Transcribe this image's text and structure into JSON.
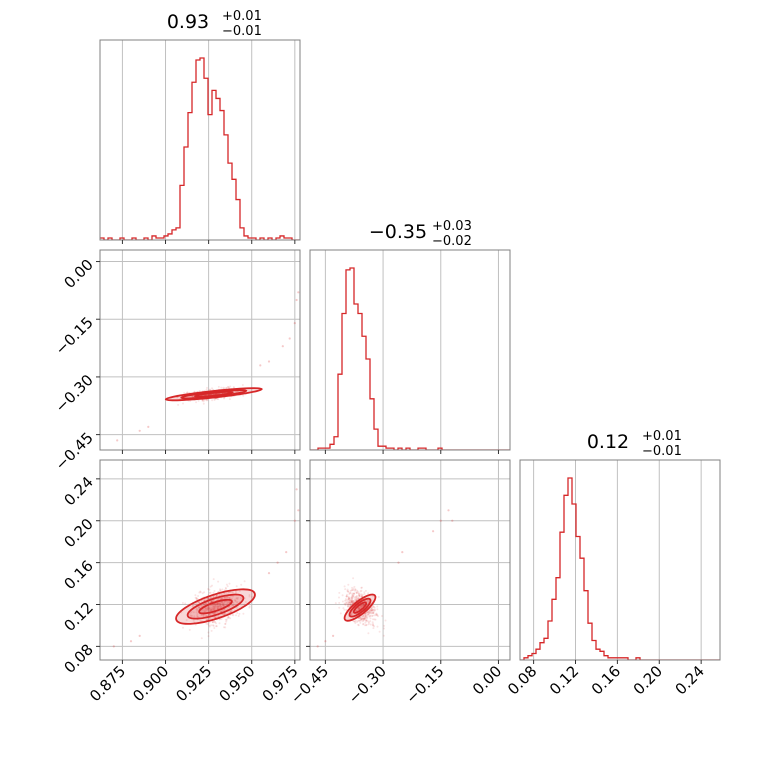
{
  "chart_data": {
    "type": "corner",
    "color": "#d62728",
    "grid": true,
    "parameters": [
      {
        "index": 0,
        "title_value": "0.93",
        "title_plus": "+0.01",
        "title_minus": "−0.01",
        "median": 0.93,
        "range": [
          0.862,
          0.978
        ],
        "ticks": [
          0.875,
          0.9,
          0.925,
          0.95,
          0.975
        ],
        "tick_labels": [
          "0.875",
          "0.900",
          "0.925",
          "0.950",
          "0.975"
        ],
        "hist": {
          "edges_start": 0.862,
          "bin_width": 0.00232,
          "counts": [
            1,
            0,
            1,
            0,
            0,
            1,
            0,
            0,
            1,
            0,
            0,
            1,
            0,
            2,
            1,
            1,
            2,
            3,
            5,
            6,
            27,
            46,
            63,
            78,
            89,
            90,
            80,
            62,
            74,
            70,
            64,
            52,
            38,
            30,
            20,
            6,
            2,
            1,
            1,
            0,
            1,
            0,
            1,
            0,
            1,
            2,
            1,
            1,
            0,
            0
          ]
        }
      },
      {
        "index": 1,
        "title_value": "−0.35",
        "title_plus": "+0.03",
        "title_minus": "−0.02",
        "median": -0.35,
        "range": [
          -0.49,
          0.03
        ],
        "ticks": [
          -0.45,
          -0.3,
          -0.15,
          0.0
        ],
        "tick_labels": [
          "−0.45",
          "−0.30",
          "−0.15",
          "0.00"
        ],
        "hist": {
          "edges_start": -0.49,
          "bin_width": 0.0104,
          "counts": [
            0,
            0,
            1,
            1,
            1,
            3,
            7,
            40,
            72,
            95,
            96,
            77,
            72,
            60,
            48,
            27,
            11,
            2,
            2,
            1,
            1,
            0,
            1,
            0,
            1,
            0,
            0,
            1,
            1,
            0,
            0,
            0,
            1,
            0,
            0,
            0,
            0,
            0,
            0,
            0,
            0,
            0,
            0,
            0,
            0,
            0,
            0,
            0,
            0,
            0
          ]
        }
      },
      {
        "index": 2,
        "title_value": "0.12",
        "title_plus": "+0.01",
        "title_minus": "−0.01",
        "median": 0.12,
        "range": [
          0.067,
          0.258
        ],
        "ticks": [
          0.08,
          0.12,
          0.16,
          0.2,
          0.24
        ],
        "tick_labels": [
          "0.08",
          "0.12",
          "0.16",
          "0.20",
          "0.24"
        ],
        "hist": {
          "edges_start": 0.067,
          "bin_width": 0.00382,
          "counts": [
            0,
            1,
            2,
            3,
            5,
            8,
            10,
            18,
            28,
            38,
            59,
            76,
            84,
            72,
            57,
            47,
            32,
            17,
            9,
            5,
            4,
            2,
            1,
            1,
            1,
            1,
            1,
            0,
            0,
            1,
            0,
            0,
            0,
            0,
            0,
            0,
            0,
            0,
            0,
            0,
            0,
            0,
            0,
            0,
            0,
            0,
            0,
            0,
            0,
            0
          ]
        }
      }
    ],
    "pairs": [
      {
        "x_param": 0,
        "y_param": 1,
        "center": [
          0.928,
          -0.345
        ],
        "direction": [
          1.0,
          0.48
        ],
        "scatter_spread": [
          0.014,
          0.006
        ],
        "contours": [
          {
            "level": 1,
            "half_length": 0.011,
            "half_width": 0.0035
          },
          {
            "level": 2,
            "half_length": 0.019,
            "half_width": 0.006
          },
          {
            "level": 3,
            "half_length": 0.028,
            "half_width": 0.0085
          }
        ],
        "tail_points": [
          [
            0.872,
            -0.465
          ],
          [
            0.885,
            -0.44
          ],
          [
            0.89,
            -0.43
          ],
          [
            0.955,
            -0.27
          ],
          [
            0.96,
            -0.26
          ],
          [
            0.968,
            -0.22
          ],
          [
            0.972,
            -0.2
          ],
          [
            0.975,
            -0.16
          ],
          [
            0.976,
            -0.1
          ],
          [
            0.977,
            -0.08
          ]
        ]
      },
      {
        "x_param": 0,
        "y_param": 2,
        "center": [
          0.929,
          0.118
        ],
        "direction": [
          1.0,
          0.55
        ],
        "scatter_spread": [
          0.013,
          0.008
        ],
        "contours": [
          {
            "level": 1,
            "half_length": 0.01,
            "half_width": 0.004
          },
          {
            "level": 2,
            "half_length": 0.017,
            "half_width": 0.0075
          },
          {
            "level": 3,
            "half_length": 0.024,
            "half_width": 0.011
          }
        ],
        "tail_points": [
          [
            0.87,
            0.08
          ],
          [
            0.88,
            0.085
          ],
          [
            0.885,
            0.09
          ],
          [
            0.96,
            0.15
          ],
          [
            0.965,
            0.16
          ],
          [
            0.97,
            0.17
          ],
          [
            0.975,
            0.2
          ],
          [
            0.977,
            0.21
          ],
          [
            0.976,
            0.23
          ]
        ]
      },
      {
        "x_param": 1,
        "y_param": 2,
        "center": [
          -0.36,
          0.117
        ],
        "direction": [
          1.0,
          0.3
        ],
        "scatter_spread": [
          0.03,
          0.009
        ],
        "contours": [
          {
            "level": 1,
            "half_length": 0.02,
            "half_width": 0.0045
          },
          {
            "level": 2,
            "half_length": 0.034,
            "half_width": 0.008
          },
          {
            "level": 3,
            "half_length": 0.05,
            "half_width": 0.0115
          }
        ],
        "tail_points": [
          [
            -0.47,
            0.08
          ],
          [
            -0.45,
            0.085
          ],
          [
            -0.43,
            0.09
          ],
          [
            -0.26,
            0.16
          ],
          [
            -0.25,
            0.17
          ],
          [
            -0.15,
            0.2
          ],
          [
            -0.13,
            0.21
          ],
          [
            -0.12,
            0.2
          ],
          [
            -0.17,
            0.19
          ]
        ]
      }
    ]
  }
}
